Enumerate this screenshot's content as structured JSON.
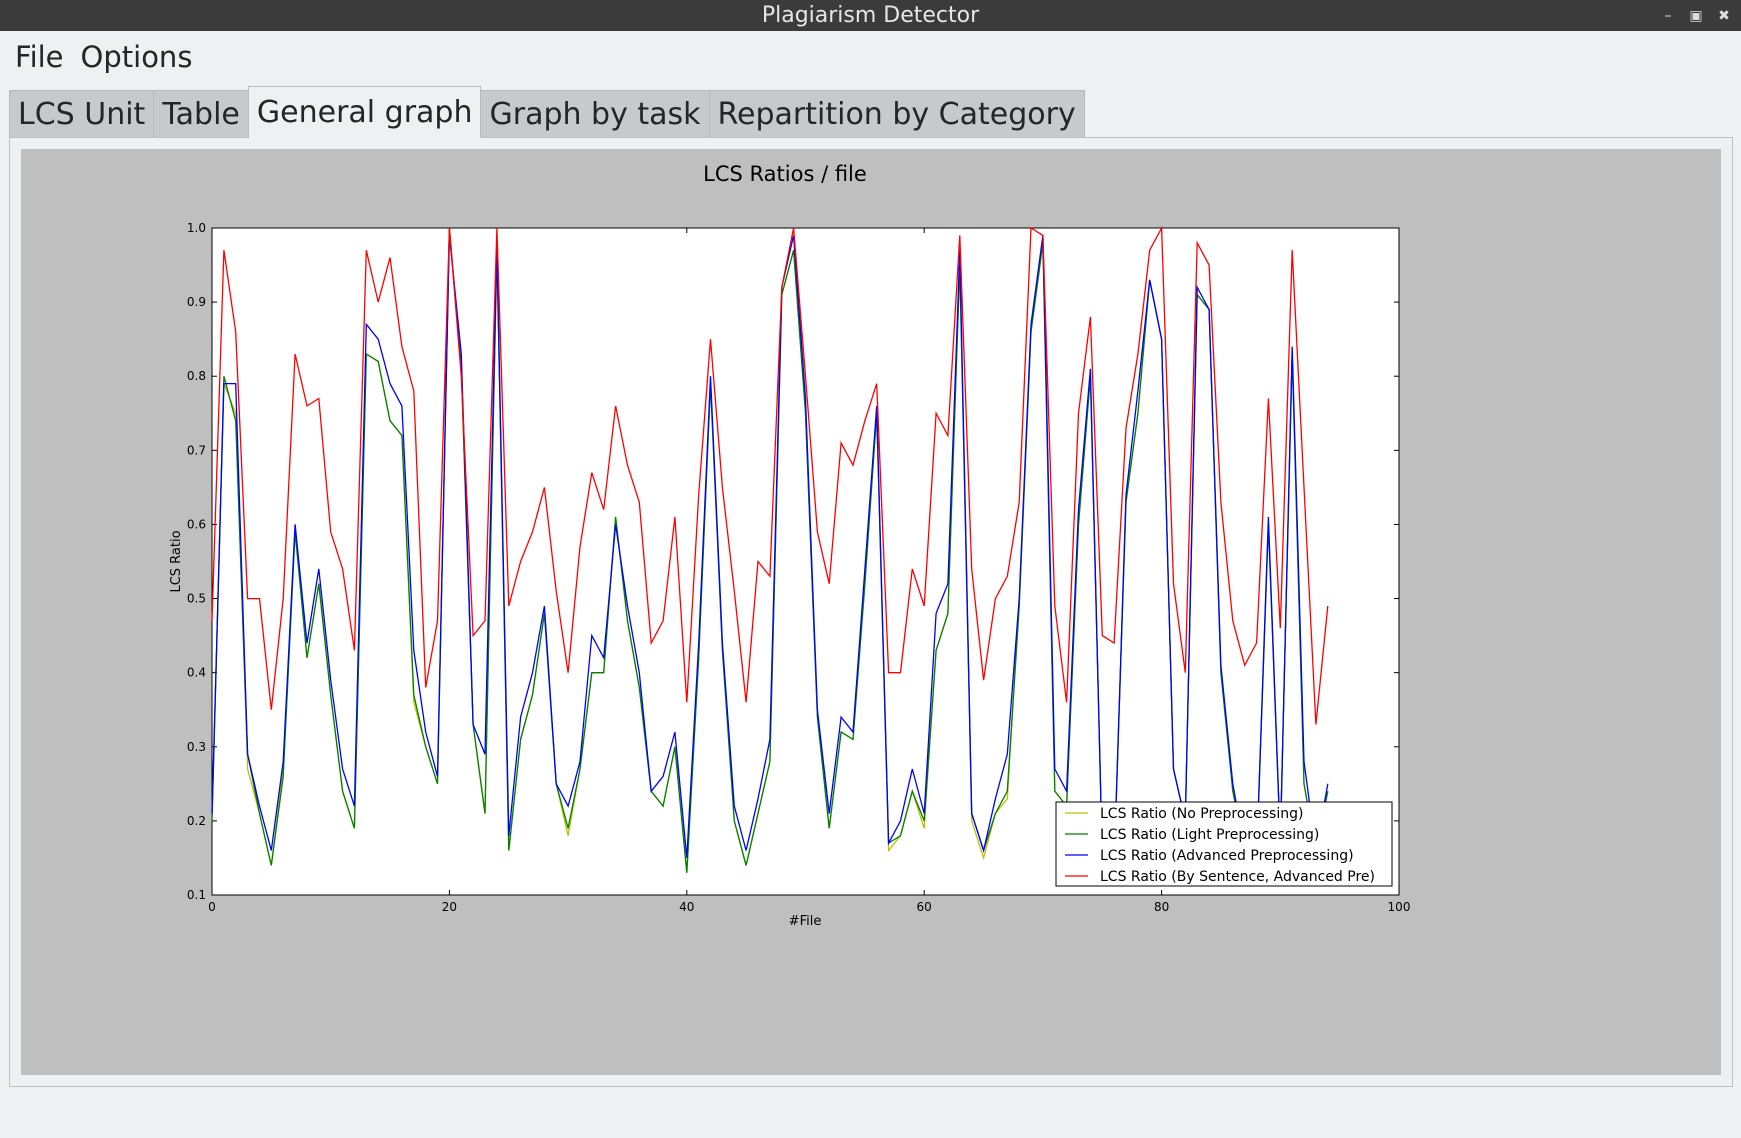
{
  "window": {
    "title": "Plagiarism Detector"
  },
  "menu": {
    "file": "File",
    "options": "Options"
  },
  "tabs": [
    {
      "label": "LCS Unit",
      "active": false
    },
    {
      "label": "Table",
      "active": false
    },
    {
      "label": "General graph",
      "active": true
    },
    {
      "label": "Graph by task",
      "active": false
    },
    {
      "label": "Repartition by Category",
      "active": false
    }
  ],
  "chart_data": {
    "type": "line",
    "title": "LCS Ratios / file",
    "xlabel": "#File",
    "ylabel": "LCS Ratio",
    "xlim": [
      0,
      100
    ],
    "ylim": [
      0.1,
      1.0
    ],
    "xticks": [
      "0",
      "20",
      "40",
      "60",
      "80",
      "100"
    ],
    "yticks": [
      "0.1",
      "0.2",
      "0.3",
      "0.4",
      "0.5",
      "0.6",
      "0.7",
      "0.8",
      "0.9",
      "1.0"
    ],
    "grid": false,
    "legend": "lower-right",
    "x": [
      0,
      1,
      2,
      3,
      4,
      5,
      6,
      7,
      8,
      9,
      10,
      11,
      12,
      13,
      14,
      15,
      16,
      17,
      18,
      19,
      20,
      21,
      22,
      23,
      24,
      25,
      26,
      27,
      28,
      29,
      30,
      31,
      32,
      33,
      34,
      35,
      36,
      37,
      38,
      39,
      40,
      41,
      42,
      43,
      44,
      45,
      46,
      47,
      48,
      49,
      50,
      51,
      52,
      53,
      54,
      55,
      56,
      57,
      58,
      59,
      60,
      61,
      62,
      63,
      64,
      65,
      66,
      67,
      68,
      69,
      70,
      71,
      72,
      73,
      74,
      75,
      76,
      77,
      78,
      79,
      80,
      81,
      82,
      83,
      84,
      85,
      86,
      87,
      88,
      89,
      90,
      91,
      92,
      93,
      94
    ],
    "series": [
      {
        "name": "LCS Ratio (No Preprocessing)",
        "color": "#bfbf00",
        "values": [
          0.2,
          0.79,
          0.75,
          0.27,
          0.21,
          0.14,
          0.27,
          0.6,
          0.42,
          0.52,
          0.37,
          0.24,
          0.19,
          0.83,
          0.82,
          0.74,
          0.72,
          0.36,
          0.3,
          0.25,
          1.0,
          0.81,
          0.33,
          0.21,
          0.97,
          0.16,
          0.31,
          0.37,
          0.48,
          0.25,
          0.18,
          0.27,
          0.4,
          0.4,
          0.61,
          0.47,
          0.38,
          0.24,
          0.22,
          0.3,
          0.13,
          0.42,
          0.79,
          0.43,
          0.2,
          0.14,
          0.21,
          0.28,
          0.91,
          0.97,
          0.75,
          0.34,
          0.19,
          0.32,
          0.31,
          0.52,
          0.75,
          0.16,
          0.18,
          0.24,
          0.19,
          0.43,
          0.48,
          0.95,
          0.2,
          0.15,
          0.21,
          0.23,
          0.49,
          0.86,
          0.98,
          0.24,
          0.22,
          0.6,
          0.8,
          0.15,
          0.14,
          0.63,
          0.75,
          0.93,
          0.85,
          0.27,
          0.2,
          0.91,
          0.89,
          0.4,
          0.24,
          0.16,
          0.15,
          0.6,
          0.17,
          0.83,
          0.25,
          0.16,
          0.24
        ]
      },
      {
        "name": "LCS Ratio (Light Preprocessing)",
        "color": "#008000",
        "values": [
          0.2,
          0.8,
          0.74,
          0.29,
          0.21,
          0.14,
          0.26,
          0.59,
          0.42,
          0.52,
          0.37,
          0.24,
          0.19,
          0.83,
          0.82,
          0.74,
          0.72,
          0.37,
          0.3,
          0.25,
          1.0,
          0.81,
          0.33,
          0.21,
          0.97,
          0.16,
          0.31,
          0.37,
          0.48,
          0.25,
          0.19,
          0.27,
          0.4,
          0.4,
          0.61,
          0.47,
          0.38,
          0.24,
          0.22,
          0.3,
          0.13,
          0.42,
          0.79,
          0.43,
          0.2,
          0.14,
          0.21,
          0.28,
          0.91,
          0.97,
          0.75,
          0.34,
          0.19,
          0.32,
          0.31,
          0.52,
          0.75,
          0.17,
          0.18,
          0.24,
          0.2,
          0.43,
          0.48,
          0.95,
          0.21,
          0.16,
          0.21,
          0.24,
          0.49,
          0.86,
          0.98,
          0.24,
          0.22,
          0.6,
          0.8,
          0.15,
          0.14,
          0.63,
          0.75,
          0.93,
          0.85,
          0.27,
          0.2,
          0.91,
          0.89,
          0.4,
          0.24,
          0.16,
          0.15,
          0.6,
          0.17,
          0.83,
          0.25,
          0.16,
          0.24
        ]
      },
      {
        "name": "LCS Ratio (Advanced Preprocessing)",
        "color": "#0000ff",
        "values": [
          0.21,
          0.79,
          0.79,
          0.29,
          0.22,
          0.16,
          0.28,
          0.6,
          0.44,
          0.54,
          0.39,
          0.27,
          0.22,
          0.87,
          0.85,
          0.79,
          0.76,
          0.43,
          0.32,
          0.26,
          0.99,
          0.83,
          0.33,
          0.29,
          0.98,
          0.18,
          0.34,
          0.4,
          0.49,
          0.25,
          0.22,
          0.28,
          0.45,
          0.42,
          0.6,
          0.49,
          0.4,
          0.24,
          0.26,
          0.32,
          0.15,
          0.44,
          0.8,
          0.44,
          0.22,
          0.16,
          0.23,
          0.31,
          0.92,
          0.99,
          0.77,
          0.35,
          0.21,
          0.34,
          0.32,
          0.54,
          0.76,
          0.17,
          0.2,
          0.27,
          0.21,
          0.48,
          0.52,
          0.97,
          0.21,
          0.16,
          0.23,
          0.29,
          0.5,
          0.87,
          0.99,
          0.27,
          0.24,
          0.62,
          0.81,
          0.15,
          0.14,
          0.64,
          0.78,
          0.93,
          0.85,
          0.27,
          0.2,
          0.92,
          0.89,
          0.41,
          0.25,
          0.16,
          0.15,
          0.61,
          0.17,
          0.84,
          0.28,
          0.16,
          0.25
        ]
      },
      {
        "name": "LCS Ratio (By Sentence, Advanced Pre)",
        "color": "#ff0000",
        "values": [
          0.47,
          0.97,
          0.86,
          0.5,
          0.5,
          0.35,
          0.5,
          0.83,
          0.76,
          0.77,
          0.59,
          0.54,
          0.43,
          0.97,
          0.9,
          0.96,
          0.84,
          0.78,
          0.38,
          0.47,
          1.0,
          0.8,
          0.45,
          0.47,
          1.0,
          0.49,
          0.55,
          0.59,
          0.65,
          0.51,
          0.4,
          0.57,
          0.67,
          0.62,
          0.76,
          0.68,
          0.63,
          0.44,
          0.47,
          0.61,
          0.36,
          0.64,
          0.85,
          0.65,
          0.51,
          0.36,
          0.55,
          0.53,
          0.92,
          1.0,
          0.8,
          0.59,
          0.52,
          0.71,
          0.68,
          0.74,
          0.79,
          0.4,
          0.4,
          0.54,
          0.49,
          0.75,
          0.72,
          0.99,
          0.54,
          0.39,
          0.5,
          0.53,
          0.63,
          1.0,
          0.99,
          0.49,
          0.36,
          0.75,
          0.88,
          0.45,
          0.44,
          0.73,
          0.83,
          0.97,
          1.0,
          0.52,
          0.4,
          0.98,
          0.95,
          0.63,
          0.47,
          0.41,
          0.44,
          0.77,
          0.46,
          0.97,
          0.65,
          0.33,
          0.49
        ]
      }
    ]
  }
}
